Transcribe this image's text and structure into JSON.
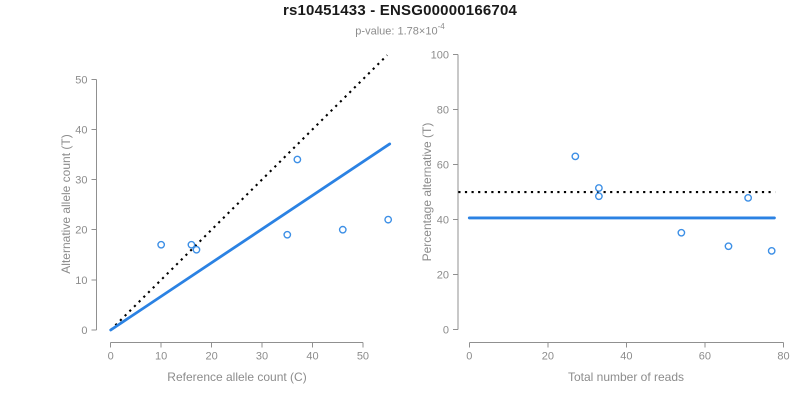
{
  "header": {
    "title": "rs10451433 - ENSG00000166704",
    "pvalue_text": "p-value: 1.78×10",
    "pvalue_exponent": "-4"
  },
  "colors": {
    "title_black": "#1a1a1a",
    "subtitle_gray": "#8c8c8c",
    "axis_gray": "#909090",
    "tick_label_gray": "#8c8c8c",
    "point_blue": "#3c8fe6",
    "line_blue": "#2b82e3",
    "reference_black": "#000000"
  },
  "chart_data": [
    {
      "id": "allele-count-scatter",
      "type": "scatter",
      "xlabel": "Reference allele count (C)",
      "ylabel": "Alternative allele count (T)",
      "xticks": [
        0,
        10,
        20,
        30,
        40,
        50
      ],
      "yticks": [
        0,
        10,
        20,
        30,
        40,
        50
      ],
      "xlim": [
        0,
        55
      ],
      "ylim": [
        0,
        55
      ],
      "grid": false,
      "legend": "none",
      "points": [
        [
          10,
          17
        ],
        [
          16,
          17
        ],
        [
          17,
          16
        ],
        [
          35,
          19
        ],
        [
          37,
          34
        ],
        [
          46,
          20
        ],
        [
          55,
          22
        ]
      ],
      "lines": [
        {
          "name": "identity-line",
          "style": "dotted",
          "color": "#000000",
          "x1": 0,
          "y1": 0,
          "x2": 54.8,
          "y2": 54.8
        },
        {
          "name": "fit-line",
          "style": "solid",
          "color": "#2b82e3",
          "x1": 0,
          "y1": 0,
          "x2": 55.3,
          "y2": 37.1
        }
      ]
    },
    {
      "id": "percentage-vs-reads-scatter",
      "type": "scatter",
      "xlabel": "Total number of reads",
      "ylabel": "Percentage alternative (T)",
      "xticks": [
        0,
        20,
        40,
        60,
        80
      ],
      "yticks": [
        0,
        20,
        40,
        60,
        80,
        100
      ],
      "xlim": [
        0,
        80
      ],
      "ylim": [
        0,
        100
      ],
      "grid": false,
      "legend": "none",
      "points": [
        [
          27,
          63.0
        ],
        [
          33,
          51.5
        ],
        [
          33,
          48.5
        ],
        [
          54,
          35.2
        ],
        [
          66,
          30.3
        ],
        [
          71,
          47.9
        ],
        [
          77,
          28.6
        ]
      ],
      "lines": [
        {
          "name": "fifty-percent-line",
          "style": "dotted",
          "color": "#000000",
          "x1": -2.8,
          "y1": 50,
          "x2": 77.9,
          "y2": 50
        },
        {
          "name": "mean-percentage-line",
          "style": "solid",
          "color": "#2b82e3",
          "x1": 0,
          "y1": 40.6,
          "x2": 77.7,
          "y2": 40.6
        }
      ]
    }
  ]
}
